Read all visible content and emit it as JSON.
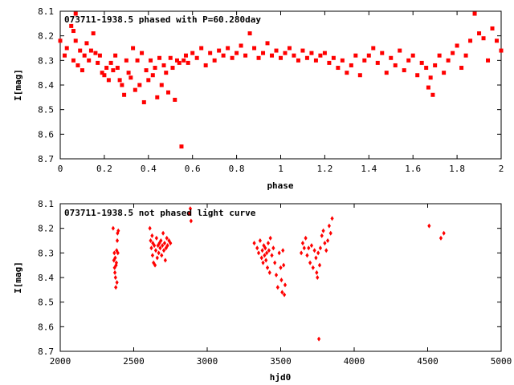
{
  "chart_data": [
    {
      "type": "scatter",
      "title": "073711-1938.5 phased with P=60.280day",
      "xlabel": "phase",
      "ylabel": "I[mag]",
      "xlim": [
        0,
        2
      ],
      "ylim": [
        8.7,
        8.1
      ],
      "y_inverted": true,
      "xticks": [
        "0",
        "0.2",
        "0.4",
        "0.6",
        "0.8",
        "1",
        "1.2",
        "1.4",
        "1.6",
        "1.8",
        "2"
      ],
      "yticks": [
        "8.1",
        "8.2",
        "8.3",
        "8.4",
        "8.5",
        "8.6",
        "8.7"
      ],
      "marker_color": "#ff0000",
      "series": [
        {
          "x": [
            0.0,
            0.02,
            0.03,
            0.05,
            0.06,
            0.06,
            0.07,
            0.07,
            0.08,
            0.09,
            0.1,
            0.11,
            0.12,
            0.13,
            0.14,
            0.15,
            0.16,
            0.17,
            0.18,
            0.19,
            0.2,
            0.21,
            0.22,
            0.23,
            0.24,
            0.25,
            0.26,
            0.27,
            0.28,
            0.29,
            0.3,
            0.31,
            0.32,
            0.33,
            0.34,
            0.35,
            0.36,
            0.37,
            0.38,
            0.39,
            0.4,
            0.41,
            0.42,
            0.43,
            0.44,
            0.45,
            0.46,
            0.47,
            0.48,
            0.49,
            0.5,
            0.51,
            0.52,
            0.53,
            0.54,
            0.55,
            0.56,
            0.57,
            0.58,
            0.6,
            0.62,
            0.64,
            0.66,
            0.68,
            0.7,
            0.72,
            0.74,
            0.76,
            0.78,
            0.8,
            0.82,
            0.84,
            0.86,
            0.88,
            0.9,
            0.92,
            0.94,
            0.96,
            0.98,
            1.0,
            1.02,
            1.04,
            1.06,
            1.08,
            1.1,
            1.12,
            1.14,
            1.16,
            1.18,
            1.2,
            1.22,
            1.24,
            1.26,
            1.28,
            1.3,
            1.32,
            1.34,
            1.36,
            1.38,
            1.4,
            1.42,
            1.44,
            1.46,
            1.48,
            1.5,
            1.52,
            1.54,
            1.56,
            1.58,
            1.6,
            1.62,
            1.64,
            1.66,
            1.67,
            1.68,
            1.69,
            1.7,
            1.72,
            1.74,
            1.76,
            1.78,
            1.8,
            1.82,
            1.84,
            1.86,
            1.88,
            1.9,
            1.92,
            1.94,
            1.96,
            1.98,
            2.0
          ],
          "y": [
            8.22,
            8.28,
            8.25,
            8.16,
            8.3,
            8.18,
            8.11,
            8.22,
            8.32,
            8.26,
            8.34,
            8.28,
            8.23,
            8.3,
            8.26,
            8.19,
            8.27,
            8.31,
            8.28,
            8.35,
            8.36,
            8.33,
            8.38,
            8.31,
            8.34,
            8.28,
            8.33,
            8.38,
            8.4,
            8.44,
            8.3,
            8.35,
            8.37,
            8.25,
            8.42,
            8.3,
            8.4,
            8.27,
            8.47,
            8.34,
            8.38,
            8.3,
            8.36,
            8.33,
            8.45,
            8.29,
            8.4,
            8.32,
            8.35,
            8.43,
            8.29,
            8.33,
            8.46,
            8.3,
            8.31,
            8.65,
            8.3,
            8.28,
            8.31,
            8.27,
            8.29,
            8.25,
            8.32,
            8.27,
            8.3,
            8.26,
            8.28,
            8.25,
            8.29,
            8.27,
            8.24,
            8.28,
            8.19,
            8.25,
            8.29,
            8.27,
            8.23,
            8.28,
            8.26,
            8.29,
            8.27,
            8.25,
            8.28,
            8.3,
            8.26,
            8.29,
            8.27,
            8.3,
            8.28,
            8.27,
            8.31,
            8.29,
            8.33,
            8.3,
            8.35,
            8.32,
            8.28,
            8.36,
            8.3,
            8.28,
            8.25,
            8.31,
            8.27,
            8.35,
            8.29,
            8.32,
            8.26,
            8.34,
            8.3,
            8.28,
            8.36,
            8.31,
            8.33,
            8.41,
            8.37,
            8.44,
            8.32,
            8.28,
            8.35,
            8.3,
            8.27,
            8.24,
            8.33,
            8.28,
            8.22,
            8.11,
            8.19,
            8.21,
            8.3,
            8.17,
            8.22,
            8.26
          ]
        }
      ]
    },
    {
      "type": "scatter",
      "title": "073711-1938.5 not phased light curve",
      "xlabel": "hjd0",
      "ylabel": "I[mag]",
      "xlim": [
        2000,
        5000
      ],
      "ylim": [
        8.7,
        8.1
      ],
      "y_inverted": true,
      "xticks": [
        "2000",
        "2500",
        "3000",
        "3500",
        "4000",
        "4500",
        "5000"
      ],
      "yticks": [
        "8.1",
        "8.2",
        "8.3",
        "8.4",
        "8.5",
        "8.6",
        "8.7"
      ],
      "marker_color": "#ff0000",
      "series": [
        {
          "x": [
            2360,
            2365,
            2368,
            2370,
            2372,
            2374,
            2376,
            2378,
            2380,
            2382,
            2384,
            2386,
            2388,
            2390,
            2392,
            2395,
            2610,
            2615,
            2620,
            2625,
            2628,
            2630,
            2635,
            2640,
            2645,
            2650,
            2655,
            2660,
            2665,
            2670,
            2675,
            2680,
            2685,
            2690,
            2695,
            2700,
            2705,
            2710,
            2715,
            2720,
            2725,
            2730,
            2740,
            2750,
            2880,
            2885,
            2890,
            3320,
            3340,
            3350,
            3360,
            3370,
            3375,
            3380,
            3385,
            3390,
            3395,
            3400,
            3405,
            3410,
            3415,
            3420,
            3425,
            3430,
            3440,
            3450,
            3460,
            3470,
            3480,
            3490,
            3500,
            3505,
            3510,
            3515,
            3520,
            3525,
            3530,
            3640,
            3650,
            3660,
            3670,
            3680,
            3690,
            3700,
            3710,
            3720,
            3730,
            3740,
            3745,
            3750,
            3755,
            3760,
            3765,
            3770,
            3780,
            3790,
            3800,
            3810,
            3820,
            3830,
            3840,
            3850,
            4510,
            4590,
            4610
          ],
          "y": [
            8.2,
            8.33,
            8.3,
            8.36,
            8.38,
            8.32,
            8.4,
            8.44,
            8.35,
            8.34,
            8.29,
            8.42,
            8.25,
            8.22,
            8.3,
            8.21,
            8.2,
            8.25,
            8.28,
            8.23,
            8.31,
            8.26,
            8.34,
            8.27,
            8.35,
            8.29,
            8.24,
            8.32,
            8.27,
            8.3,
            8.26,
            8.28,
            8.25,
            8.31,
            8.27,
            8.22,
            8.29,
            8.26,
            8.33,
            8.28,
            8.24,
            8.27,
            8.25,
            8.26,
            8.14,
            8.12,
            8.17,
            8.26,
            8.28,
            8.3,
            8.25,
            8.32,
            8.29,
            8.34,
            8.27,
            8.31,
            8.28,
            8.33,
            8.3,
            8.36,
            8.26,
            8.29,
            8.38,
            8.24,
            8.31,
            8.28,
            8.34,
            8.39,
            8.44,
            8.3,
            8.36,
            8.41,
            8.46,
            8.29,
            8.35,
            8.47,
            8.43,
            8.3,
            8.26,
            8.28,
            8.24,
            8.31,
            8.28,
            8.34,
            8.27,
            8.36,
            8.29,
            8.32,
            8.38,
            8.4,
            8.3,
            8.65,
            8.35,
            8.28,
            8.23,
            8.21,
            8.26,
            8.29,
            8.25,
            8.19,
            8.22,
            8.16,
            8.19,
            8.24,
            8.22
          ]
        }
      ]
    }
  ]
}
